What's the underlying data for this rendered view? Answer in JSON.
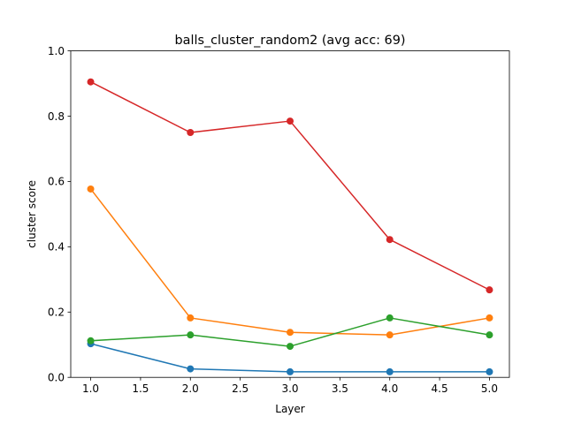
{
  "chart_data": {
    "type": "line",
    "title": "balls_cluster_random2 (avg acc: 69)",
    "xlabel": "Layer",
    "ylabel": "cluster score",
    "xlim": [
      0.8,
      5.2
    ],
    "ylim": [
      0.0,
      1.0
    ],
    "xticks": [
      "1.0",
      "1.5",
      "2.0",
      "2.5",
      "3.0",
      "3.5",
      "4.0",
      "4.5",
      "5.0"
    ],
    "yticks": [
      "0.0",
      "0.2",
      "0.4",
      "0.6",
      "0.8",
      "1.0"
    ],
    "grid": false,
    "legend": "none",
    "x": [
      1,
      2,
      3,
      4,
      5
    ],
    "series": [
      {
        "color": "#1f77b4",
        "values": [
          0.103,
          0.026,
          0.017,
          0.017,
          0.017
        ]
      },
      {
        "color": "#ff7f0e",
        "values": [
          0.577,
          0.182,
          0.138,
          0.13,
          0.182
        ]
      },
      {
        "color": "#2ca02c",
        "values": [
          0.112,
          0.13,
          0.095,
          0.182,
          0.13
        ]
      },
      {
        "color": "#d62728",
        "values": [
          0.905,
          0.75,
          0.785,
          0.422,
          0.268
        ]
      }
    ]
  }
}
